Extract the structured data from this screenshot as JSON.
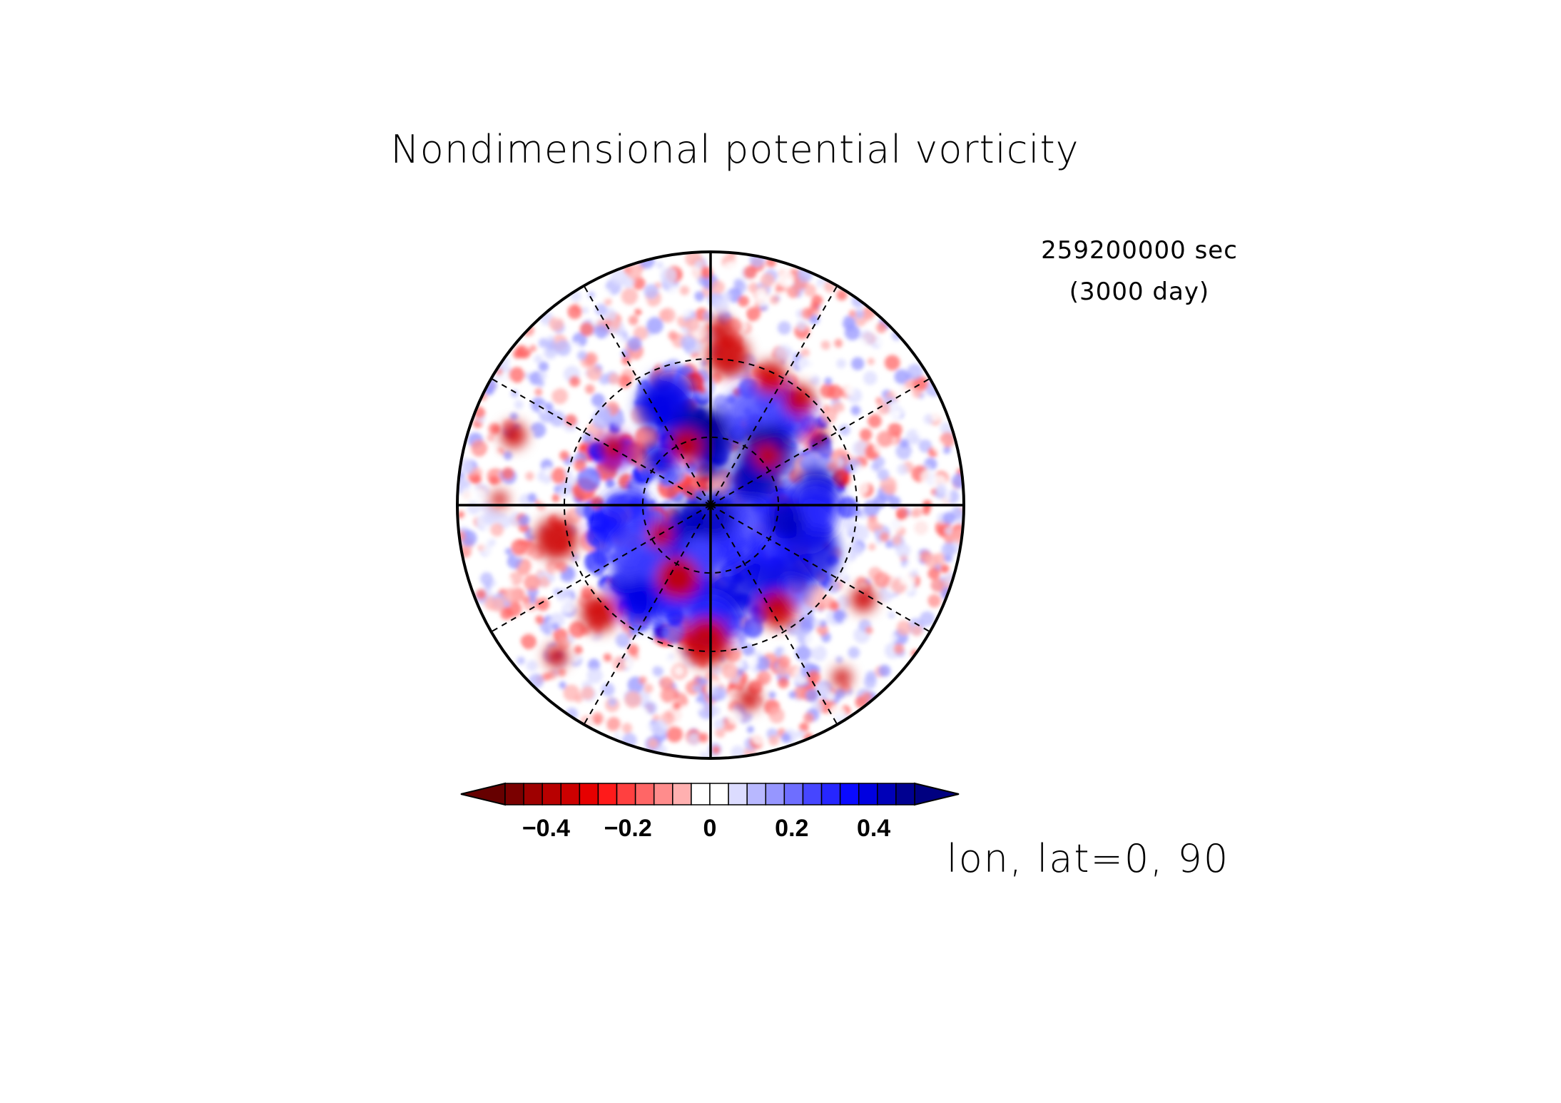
{
  "chart_data": {
    "type": "heatmap",
    "projection": "polar stereographic (north pole view)",
    "title": "Nondimensional potential vorticity",
    "time_label": "259200000 sec",
    "time_sub_label": "(3000 day)",
    "axis_note": "lon, lat=0, 90",
    "colorbar": {
      "range": [
        -0.5,
        0.5
      ],
      "interval": 0.05,
      "extend": "both",
      "tick_labels": [
        "−0.4",
        "−0.2",
        "0",
        "0.2",
        "0.4"
      ],
      "tick_values": [
        -0.4,
        -0.2,
        0,
        0.2,
        0.4
      ],
      "colors": [
        "#7a0000",
        "#9e0000",
        "#b80000",
        "#cc0000",
        "#e60000",
        "#ff1a1a",
        "#ff4040",
        "#ff6666",
        "#ff8c8c",
        "#ffb0b0",
        "#ffffff",
        "#ffffff",
        "#dcdcff",
        "#b8b8ff",
        "#9696ff",
        "#6e6eff",
        "#4646ff",
        "#2626ff",
        "#0a0aff",
        "#0000e0",
        "#0000b8",
        "#000090"
      ],
      "extend_colors": {
        "low": "#660000",
        "high": "#000080"
      }
    },
    "grid": {
      "meridians_deg": [
        0,
        30,
        60,
        90,
        120,
        150,
        180,
        210,
        240,
        270,
        300,
        330
      ],
      "latitude_circles_deg": [
        60,
        30
      ],
      "solid_meridians_deg": [
        0,
        90,
        180,
        270
      ]
    },
    "notable_anomalies": [
      {
        "sign": "positive",
        "region": "near pole",
        "value": 0.45
      },
      {
        "sign": "negative",
        "region": "ring near 60-70N",
        "value": -0.35
      },
      {
        "sign": "mixed small-scale",
        "region": "equatorward of 30N",
        "value": 0.1
      }
    ]
  }
}
